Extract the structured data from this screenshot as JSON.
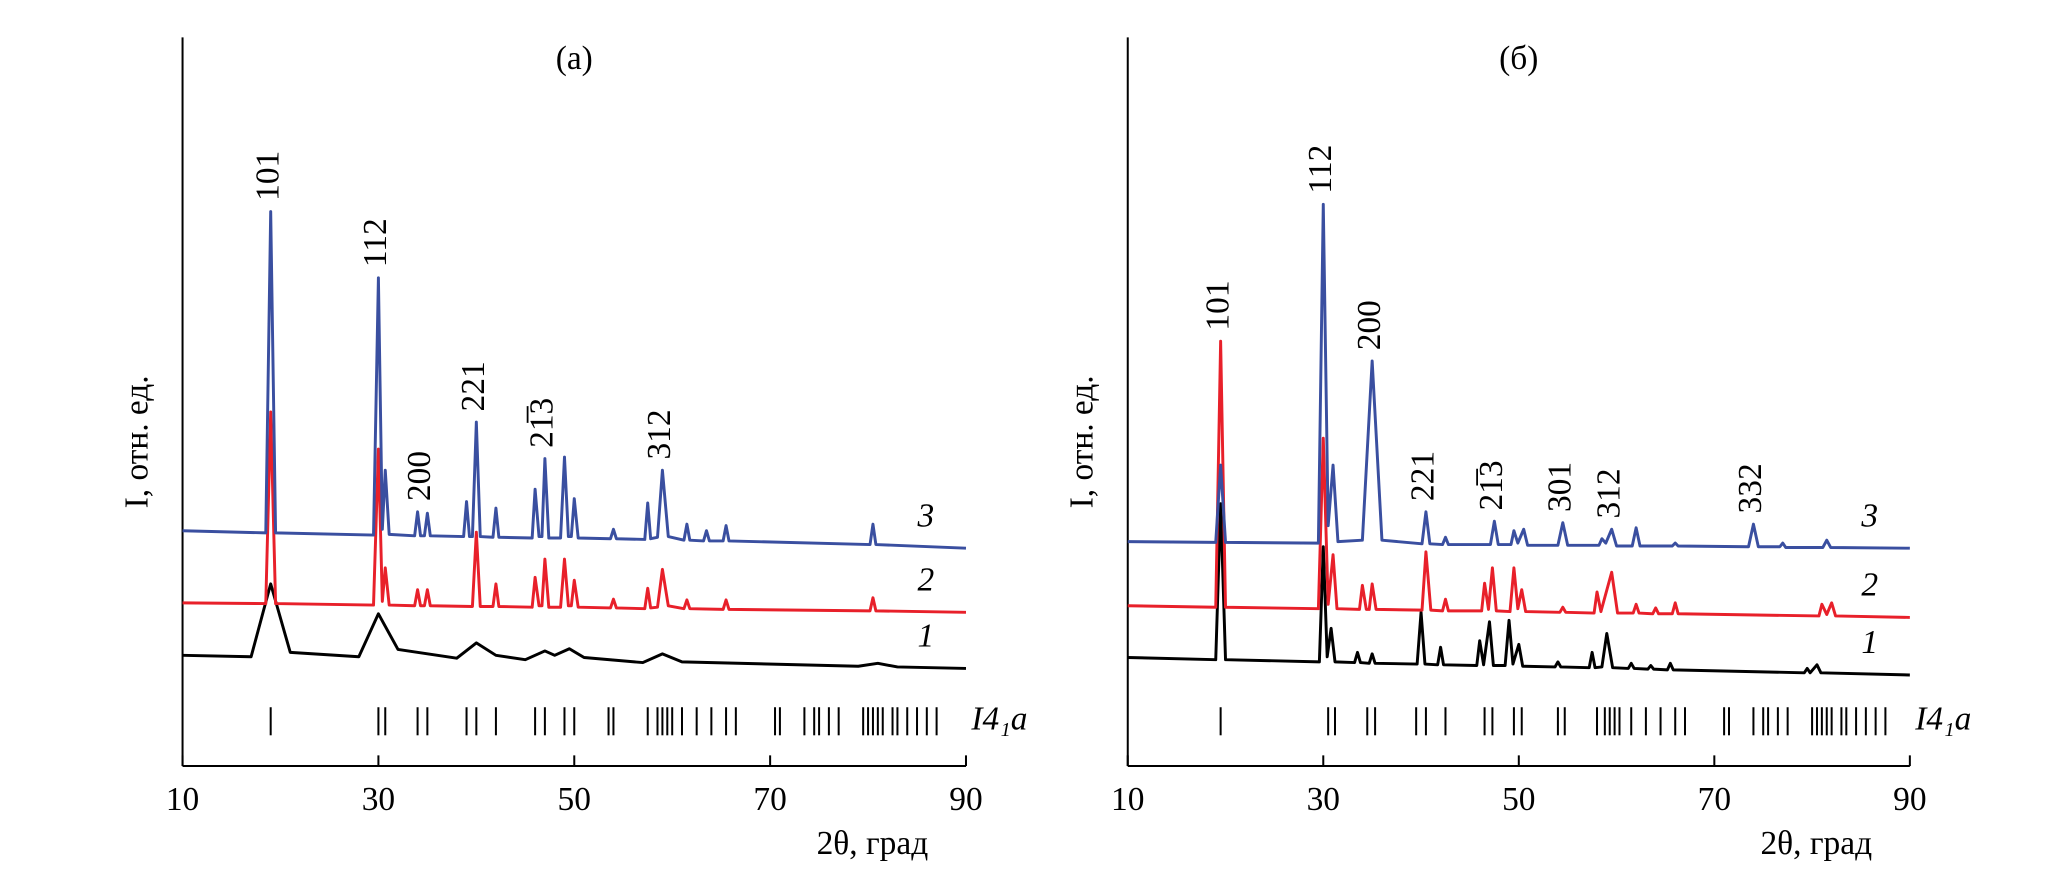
{
  "chart_data": [
    {
      "type": "line",
      "title": "(a)",
      "x_label": "2θ, град",
      "y_label": "I, отн. ед.",
      "xlim": [
        10,
        90
      ],
      "xticks": [
        10,
        30,
        50,
        70,
        90
      ],
      "ylim": [
        0,
        100
      ],
      "series": [
        {
          "name": "1",
          "color": "#000000",
          "x": [
            10,
            17,
            19,
            21,
            28,
            30,
            32,
            38,
            40,
            42,
            45,
            47,
            48,
            49.5,
            51,
            57,
            59,
            61,
            79,
            81,
            83,
            90
          ],
          "values": [
            15.2,
            15.0,
            25.0,
            15.6,
            15.0,
            20.9,
            16.0,
            14.8,
            16.9,
            15.2,
            14.6,
            15.8,
            15.2,
            16.1,
            14.9,
            14.2,
            15.4,
            14.3,
            13.7,
            14.1,
            13.6,
            13.4
          ]
        },
        {
          "name": "2",
          "color": "#e8202a",
          "x": [
            10,
            18.5,
            19,
            19.5,
            29.5,
            30,
            30.4,
            30.7,
            31.1,
            33.7,
            34,
            34.3,
            34.7,
            35,
            35.3,
            39.6,
            40,
            40.4,
            41.7,
            42,
            42.3,
            45.7,
            46,
            46.4,
            46.7,
            47,
            47.4,
            48.6,
            49,
            49.4,
            49.7,
            50,
            50.4,
            53.7,
            54,
            54.3,
            57.2,
            57.5,
            57.8,
            58.5,
            59,
            59.6,
            61.2,
            61.5,
            61.8,
            65.2,
            65.5,
            65.8,
            80.2,
            80.5,
            80.8,
            90
          ],
          "values": [
            22.4,
            22.3,
            48.6,
            22.3,
            22.1,
            43.5,
            22.6,
            27.2,
            22.1,
            22.0,
            24.2,
            22.0,
            22.0,
            24.2,
            22.0,
            21.9,
            32.1,
            21.9,
            21.9,
            25.0,
            21.9,
            21.8,
            25.9,
            22.0,
            22.0,
            28.4,
            21.8,
            21.8,
            28.4,
            22.0,
            22.0,
            25.5,
            21.8,
            21.7,
            22.9,
            21.7,
            21.6,
            24.4,
            21.7,
            21.8,
            27.0,
            22.0,
            21.6,
            22.8,
            21.6,
            21.5,
            22.8,
            21.5,
            21.3,
            23.1,
            21.3,
            21.1
          ]
        },
        {
          "name": "3",
          "color": "#3a4fa0",
          "x": [
            10,
            18.5,
            19,
            19.5,
            29.5,
            30,
            30.4,
            30.7,
            31.1,
            33.7,
            34,
            34.3,
            34.7,
            35,
            35.3,
            38.7,
            39,
            39.3,
            39.6,
            40,
            40.4,
            41.7,
            42,
            42.3,
            45.7,
            46,
            46.4,
            46.7,
            47,
            47.4,
            48.6,
            49,
            49.4,
            49.7,
            50,
            50.4,
            53.7,
            54,
            54.3,
            57.2,
            57.5,
            57.8,
            58.5,
            59,
            59.6,
            61.2,
            61.5,
            61.8,
            63.2,
            63.5,
            63.8,
            65.2,
            65.5,
            65.8,
            80.2,
            80.5,
            80.8,
            90
          ],
          "values": [
            32.3,
            32.0,
            76.1,
            32.0,
            31.7,
            67.0,
            32.5,
            40.6,
            31.8,
            31.6,
            34.9,
            31.6,
            31.6,
            34.7,
            31.6,
            31.5,
            36.3,
            31.5,
            31.5,
            47.2,
            31.5,
            31.4,
            35.4,
            31.4,
            31.3,
            38.0,
            31.5,
            31.5,
            42.2,
            31.3,
            31.3,
            42.4,
            31.5,
            31.5,
            36.7,
            31.3,
            31.2,
            32.5,
            31.2,
            31.1,
            36.1,
            31.2,
            31.4,
            40.6,
            31.5,
            31.0,
            33.2,
            31.0,
            30.9,
            32.3,
            30.9,
            30.9,
            33.0,
            30.9,
            30.4,
            33.2,
            30.4,
            29.9
          ]
        }
      ],
      "annotations": [
        {
          "text": "101",
          "x": 19
        },
        {
          "text": "112",
          "x": 30
        },
        {
          "text": "200",
          "x": 34.5
        },
        {
          "text": "221",
          "x": 40
        },
        {
          "text": "21̅3",
          "x": 47
        },
        {
          "text": "312",
          "x": 59
        }
      ],
      "reflections": {
        "label": "I4₁a",
        "positions": [
          19,
          30,
          30.7,
          34,
          35,
          39,
          40,
          42,
          46,
          47,
          49,
          50,
          53.5,
          54,
          57.5,
          58.5,
          59,
          59.5,
          60,
          61,
          62.5,
          64,
          65.5,
          66.5,
          70.5,
          71,
          73.5,
          74.5,
          75,
          76,
          77,
          79.5,
          80,
          80.5,
          81,
          81.5,
          82.5,
          83,
          84,
          85,
          86,
          87
        ]
      }
    },
    {
      "type": "line",
      "title": "(б)",
      "x_label": "2θ, град",
      "y_label": "I, отн. ед.",
      "xlim": [
        10,
        90
      ],
      "xticks": [
        10,
        30,
        50,
        70,
        90
      ],
      "ylim": [
        0,
        100
      ],
      "series": [
        {
          "name": "1",
          "color": "#000000",
          "x": [
            10,
            19,
            19.5,
            20,
            29.6,
            30,
            30.4,
            30.8,
            31.2,
            33.2,
            33.5,
            33.8,
            34.7,
            35,
            35.3,
            39.6,
            40,
            40.4,
            41.7,
            42,
            42.3,
            45.7,
            46,
            46.4,
            47,
            47.4,
            48.6,
            49,
            49.4,
            50,
            50.4,
            53.7,
            54,
            54.3,
            57.2,
            57.5,
            57.8,
            58.5,
            59,
            59.6,
            61.2,
            61.5,
            61.8,
            63.2,
            63.5,
            63.8,
            65.2,
            65.5,
            65.8,
            79.2,
            79.5,
            79.8,
            80.5,
            80.9,
            90
          ],
          "values": [
            14.9,
            14.6,
            36.0,
            14.6,
            14.3,
            30.1,
            15.0,
            18.9,
            14.3,
            14.2,
            15.6,
            14.2,
            14.1,
            15.4,
            14.1,
            14.0,
            21.1,
            14.0,
            13.9,
            16.3,
            13.9,
            13.8,
            17.2,
            13.9,
            19.8,
            13.8,
            13.8,
            20.0,
            14.0,
            16.7,
            13.7,
            13.6,
            14.3,
            13.6,
            13.5,
            15.6,
            13.5,
            13.6,
            18.2,
            13.5,
            13.4,
            14.1,
            13.4,
            13.3,
            13.8,
            13.3,
            13.2,
            14.1,
            13.2,
            12.8,
            13.4,
            12.8,
            13.9,
            12.8,
            12.5
          ]
        },
        {
          "name": "2",
          "color": "#e8202a",
          "x": [
            10,
            19,
            19.5,
            20,
            29.5,
            30,
            30.5,
            31,
            31.4,
            33.7,
            34,
            34.4,
            34.7,
            35,
            35.4,
            40.1,
            40.5,
            41,
            42.2,
            42.5,
            42.8,
            46.2,
            46.5,
            46.9,
            47.3,
            47.7,
            49.1,
            49.5,
            49.9,
            50.3,
            50.7,
            54.2,
            54.5,
            54.8,
            57.7,
            58,
            58.4,
            59.5,
            60.1,
            61.7,
            62,
            62.3,
            63.7,
            64,
            64.3,
            65.7,
            66,
            66.3,
            80.7,
            81,
            81.5,
            82,
            82.4,
            90
          ],
          "values": [
            22.0,
            21.8,
            58.3,
            21.8,
            21.6,
            45.0,
            22.2,
            29.0,
            21.6,
            21.5,
            24.8,
            21.5,
            21.5,
            25.0,
            21.5,
            21.4,
            29.4,
            21.4,
            21.3,
            22.9,
            21.3,
            21.3,
            25.1,
            21.5,
            27.2,
            21.3,
            21.2,
            27.2,
            21.6,
            24.2,
            21.2,
            21.1,
            21.8,
            21.1,
            21.0,
            23.9,
            21.2,
            26.6,
            21.0,
            21.0,
            22.2,
            21.0,
            20.9,
            21.7,
            20.9,
            20.9,
            22.4,
            20.9,
            20.6,
            22.2,
            20.8,
            22.4,
            20.6,
            20.4
          ]
        },
        {
          "name": "3",
          "color": "#3a4fa0",
          "x": [
            10,
            19,
            19.5,
            20,
            29.5,
            30,
            30.5,
            31,
            31.5,
            34,
            35,
            36,
            40.1,
            40.5,
            40.9,
            42.2,
            42.5,
            42.8,
            47.1,
            47.5,
            47.9,
            49.2,
            49.5,
            49.9,
            50.5,
            50.9,
            54,
            54.5,
            55,
            58.2,
            58.5,
            58.9,
            59.5,
            60,
            61.6,
            62,
            62.4,
            65.7,
            66,
            66.3,
            73.5,
            74,
            74.5,
            76.7,
            77,
            77.3,
            81.1,
            81.5,
            81.9,
            90
          ],
          "values": [
            30.8,
            30.7,
            41.3,
            30.7,
            30.6,
            77.1,
            33.0,
            41.3,
            30.8,
            31.0,
            55.6,
            31.0,
            30.5,
            34.9,
            30.5,
            30.4,
            31.4,
            30.4,
            30.4,
            33.6,
            30.4,
            30.4,
            32.3,
            30.6,
            32.5,
            30.3,
            30.3,
            33.4,
            30.3,
            30.3,
            31.2,
            30.6,
            32.5,
            30.2,
            30.2,
            32.7,
            30.2,
            30.2,
            30.6,
            30.2,
            30.1,
            33.2,
            30.1,
            30.1,
            30.6,
            30.0,
            30.0,
            31.0,
            30.0,
            29.9
          ]
        }
      ],
      "annotations": [
        {
          "text": "101",
          "x": 19.5
        },
        {
          "text": "112",
          "x": 30
        },
        {
          "text": "200",
          "x": 35
        },
        {
          "text": "221",
          "x": 40.5
        },
        {
          "text": "21̅3",
          "x": 47.5
        },
        {
          "text": "301",
          "x": 54.5
        },
        {
          "text": "312",
          "x": 59.5
        },
        {
          "text": "332",
          "x": 74
        }
      ],
      "reflections": {
        "label": "I4₁a",
        "positions": [
          19.5,
          30.5,
          31.2,
          34.5,
          35.3,
          39.5,
          40.5,
          42.5,
          46.5,
          47.3,
          49.5,
          50.3,
          54,
          54.7,
          58,
          58.8,
          59.3,
          59.8,
          60.3,
          61.5,
          63,
          64.5,
          66,
          67,
          71,
          71.5,
          74,
          75,
          75.5,
          76.5,
          77.5,
          80,
          80.5,
          81,
          81.5,
          82,
          83,
          83.5,
          84.5,
          85.5,
          86.5,
          87.5
        ]
      }
    }
  ]
}
